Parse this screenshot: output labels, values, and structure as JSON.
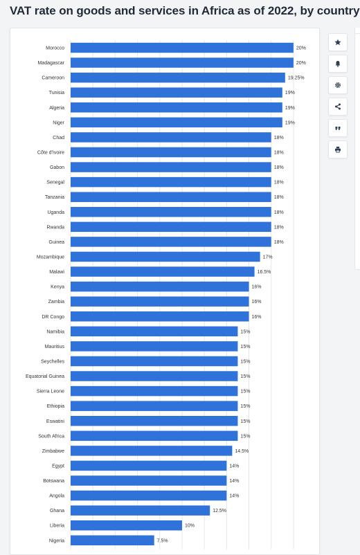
{
  "header": {
    "title": "VAT rate on goods and services in Africa as of 2022, by country"
  },
  "toolbar": {
    "buttons": [
      {
        "name": "favorite-button",
        "icon": "star-icon"
      },
      {
        "name": "notify-button",
        "icon": "bell-icon"
      },
      {
        "name": "settings-button",
        "icon": "gear-icon"
      },
      {
        "name": "share-button",
        "icon": "share-icon"
      },
      {
        "name": "cite-button",
        "icon": "quote-icon"
      },
      {
        "name": "print-button",
        "icon": "print-icon"
      }
    ]
  },
  "colors": {
    "bar": "#2f72d9",
    "grid": "#e6e6e6",
    "text": "#333333",
    "icon": "#2c3e50"
  },
  "chart_data": {
    "type": "bar",
    "orientation": "horizontal",
    "title": "VAT rate on goods and services in Africa as of 2022, by country",
    "xlabel": "",
    "ylabel": "",
    "xlim": [
      0,
      21
    ],
    "grid": true,
    "categories": [
      "Morocco",
      "Madagascar",
      "Cameroon",
      "Tunisia",
      "Algeria",
      "Niger",
      "Chad",
      "Côte d'Ivoire",
      "Gabon",
      "Senegal",
      "Tanzania",
      "Uganda",
      "Rwanda",
      "Guinea",
      "Mozambique",
      "Malawi",
      "Kenya",
      "Zambia",
      "DR Congo",
      "Namibia",
      "Mauritius",
      "Seychelles",
      "Equatorial Guinea",
      "Sierra Leone",
      "Ethiopia",
      "Eswatini",
      "South Africa",
      "Zimbabwe",
      "Egypt",
      "Botswana",
      "Angola",
      "Ghana",
      "Liberia",
      "Nigeria"
    ],
    "values": [
      20,
      20,
      19.25,
      19,
      19,
      19,
      18,
      18,
      18,
      18,
      18,
      18,
      18,
      18,
      17,
      16.5,
      16,
      16,
      16,
      15,
      15,
      15,
      15,
      15,
      15,
      15,
      15,
      14.5,
      14,
      14,
      14,
      12.5,
      10,
      7.5
    ],
    "labels": [
      "20%",
      "20%",
      "19.25%",
      "19%",
      "19%",
      "19%",
      "18%",
      "18%",
      "18%",
      "18%",
      "18%",
      "18%",
      "18%",
      "18%",
      "17%",
      "16.5%",
      "16%",
      "16%",
      "16%",
      "15%",
      "15%",
      "15%",
      "15%",
      "15%",
      "15%",
      "15%",
      "15%",
      "14.5%",
      "14%",
      "14%",
      "14%",
      "12.5%",
      "10%",
      "7.5%"
    ]
  }
}
